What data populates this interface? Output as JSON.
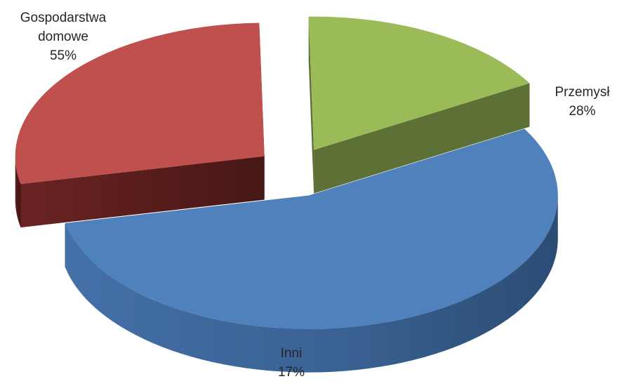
{
  "chart_data": {
    "type": "pie",
    "style": "3d-exploded",
    "slices": [
      {
        "label_lines": [
          "Gospodarstwa",
          "domowe"
        ],
        "label": "Gospodarstwa domowe",
        "value": 55,
        "value_label": "55%",
        "color": "#4F81BD"
      },
      {
        "label_lines": [
          "Przemysł"
        ],
        "label": "Przemysł",
        "value": 28,
        "value_label": "28%",
        "color": "#C0504D"
      },
      {
        "label_lines": [
          "Inni"
        ],
        "label": "Inni",
        "value": 17,
        "value_label": "17%",
        "color": "#9BBB59"
      }
    ],
    "legend": "none",
    "data_labels": "category and percentage, outside slices"
  }
}
